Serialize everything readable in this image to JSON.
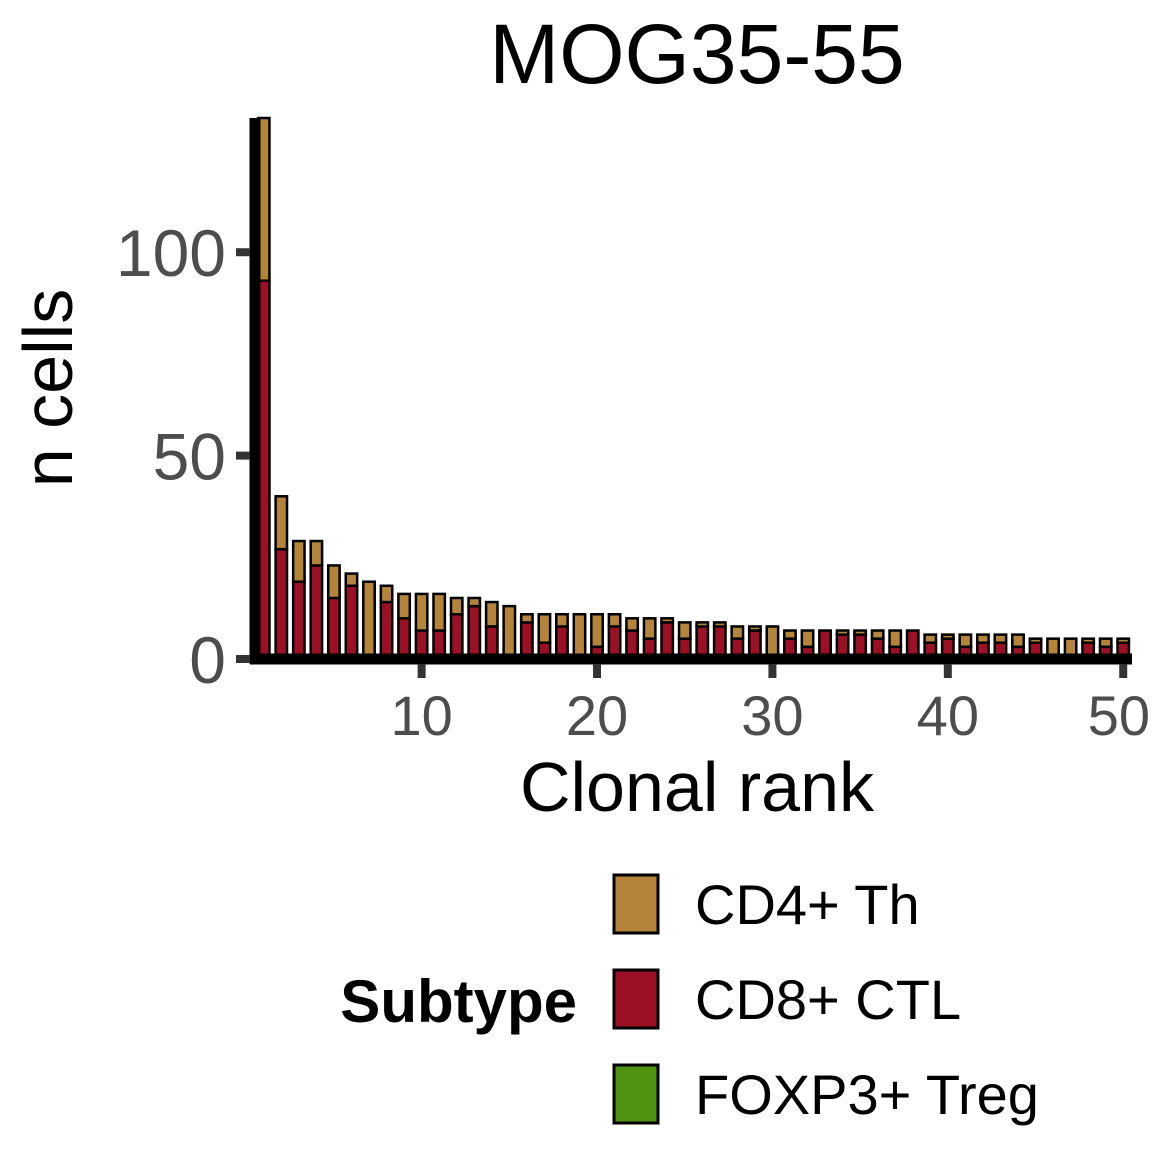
{
  "chart_data": {
    "type": "bar",
    "stacked": true,
    "title": "MOG35-55",
    "xlabel": "Clonal rank",
    "ylabel": "n cells",
    "xlim": [
      0.5,
      50.5
    ],
    "ylim": [
      0,
      133
    ],
    "x_ticks": [
      10,
      20,
      30,
      40,
      50
    ],
    "y_ticks": [
      0,
      50,
      100
    ],
    "legend": {
      "title": "Subtype",
      "position": "bottom",
      "entries": [
        {
          "name": "CD4+ Th",
          "color": "#b5843b"
        },
        {
          "name": "CD8+ CTL",
          "color": "#9b1024"
        },
        {
          "name": "FOXP3+ Treg",
          "color": "#4f9411"
        }
      ]
    },
    "categories": [
      1,
      2,
      3,
      4,
      5,
      6,
      7,
      8,
      9,
      10,
      11,
      12,
      13,
      14,
      15,
      16,
      17,
      18,
      19,
      20,
      21,
      22,
      23,
      24,
      25,
      26,
      27,
      28,
      29,
      30,
      31,
      32,
      33,
      34,
      35,
      36,
      37,
      38,
      39,
      40,
      41,
      42,
      43,
      44,
      45,
      46,
      47,
      48,
      49,
      50
    ],
    "series": [
      {
        "name": "CD8+ CTL",
        "color": "#9b1024",
        "values": [
          93,
          27,
          19,
          23,
          15,
          18,
          0,
          14,
          10,
          7,
          7,
          11,
          13,
          8,
          0,
          9,
          4,
          8,
          0,
          3,
          8,
          7,
          5,
          9,
          5,
          8,
          8,
          5,
          7,
          0,
          5,
          3,
          7,
          6,
          6,
          5,
          3,
          7,
          4,
          5,
          3,
          4,
          4,
          3,
          4,
          0,
          0,
          4,
          3,
          4
        ]
      },
      {
        "name": "CD4+ Th",
        "color": "#b5843b",
        "values": [
          40,
          13,
          10,
          6,
          8,
          3,
          19,
          4,
          6,
          9,
          9,
          4,
          2,
          6,
          13,
          2,
          7,
          3,
          11,
          8,
          3,
          3,
          5,
          1,
          4,
          1,
          1,
          3,
          1,
          8,
          2,
          4,
          0,
          1,
          1,
          2,
          4,
          0,
          2,
          1,
          3,
          2,
          2,
          3,
          1,
          5,
          5,
          1,
          2,
          1
        ]
      },
      {
        "name": "FOXP3+ Treg",
        "color": "#4f9411",
        "values": [
          0,
          0,
          0,
          0,
          0,
          0,
          0,
          0,
          0,
          0,
          0,
          0,
          0,
          0,
          0,
          0,
          0,
          0,
          0,
          0,
          0,
          0,
          0,
          0,
          0,
          0,
          0,
          0,
          0,
          0,
          0,
          0,
          0,
          0,
          0,
          0,
          0,
          0,
          0,
          0,
          0,
          0,
          0,
          0,
          0,
          0,
          0,
          0,
          0,
          0
        ]
      }
    ]
  }
}
